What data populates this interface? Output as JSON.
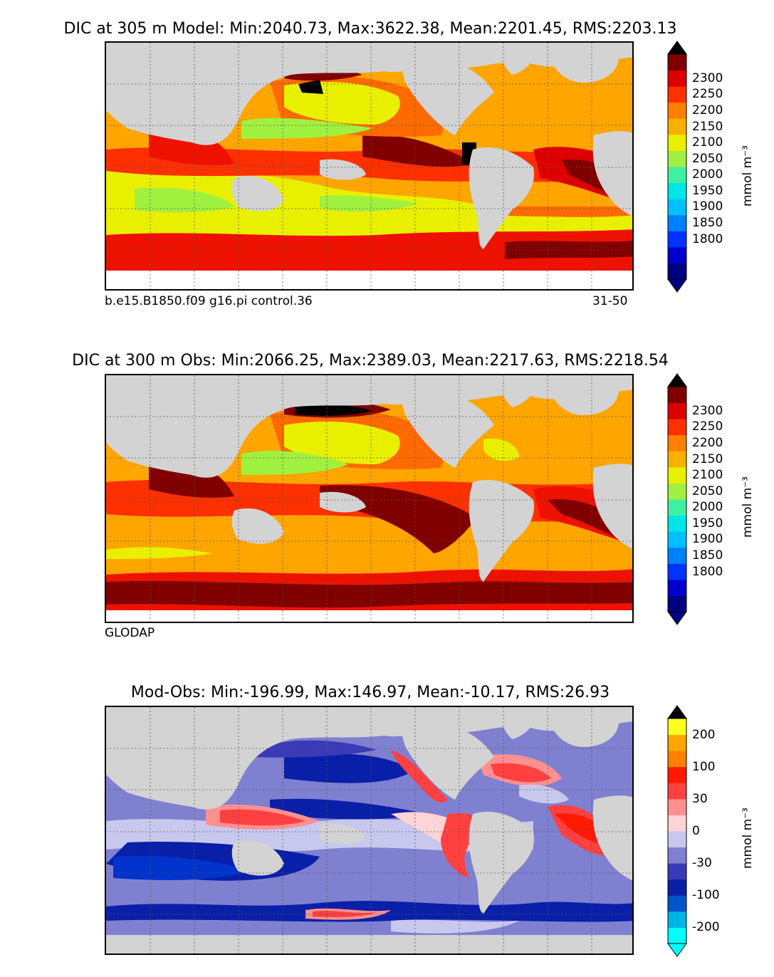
{
  "panels": [
    {
      "id": "model",
      "title": "DIC at 305 m Model: Min:2040.73, Max:3622.38, Mean:2201.45, RMS:2203.13",
      "caption_left": "b.e15.B1850.f09 g16.pi control.36",
      "caption_right": "31-50",
      "colorbar": {
        "ticks": [
          "2300",
          "2250",
          "2200",
          "2150",
          "2100",
          "2050",
          "2000",
          "1950",
          "1900",
          "1850",
          "1800"
        ],
        "units": "mmol m⁻³",
        "colors": [
          "#000080",
          "#0000cd",
          "#0033ff",
          "#0080ff",
          "#00bfff",
          "#00e5e5",
          "#40f0a0",
          "#a0f040",
          "#e8f000",
          "#f8b000",
          "#ff8000",
          "#ff3000",
          "#dd0000",
          "#800000"
        ]
      }
    },
    {
      "id": "obs",
      "title": "DIC at 300 m Obs: Min:2066.25, Max:2389.03, Mean:2217.63, RMS:2218.54",
      "caption_left": "GLODAP",
      "colorbar": {
        "ticks": [
          "2300",
          "2250",
          "2200",
          "2150",
          "2100",
          "2050",
          "2000",
          "1950",
          "1900",
          "1850",
          "1800"
        ],
        "units": "mmol m⁻³",
        "colors": [
          "#000080",
          "#0000cd",
          "#0033ff",
          "#0080ff",
          "#00bfff",
          "#00e5e5",
          "#40f0a0",
          "#a0f040",
          "#e8f000",
          "#f8b000",
          "#ff8000",
          "#ff3000",
          "#dd0000",
          "#800000"
        ]
      }
    },
    {
      "id": "diff",
      "title": "Mod-Obs: Min:-196.99, Max:146.97, Mean:-10.17, RMS:26.93",
      "colorbar": {
        "ticks": [
          "200",
          "100",
          "30",
          "0",
          "-30",
          "-100",
          "-200"
        ],
        "units": "mmol m⁻³",
        "colors": [
          "#00ffff",
          "#00b4e6",
          "#0055cc",
          "#0a1fa8",
          "#3a3ab8",
          "#8080d0",
          "#c8c8ee",
          "#ffd4d4",
          "#ff9090",
          "#ff4040",
          "#ff1a00",
          "#ff8000",
          "#ffa500",
          "#ffff20"
        ]
      }
    }
  ]
}
